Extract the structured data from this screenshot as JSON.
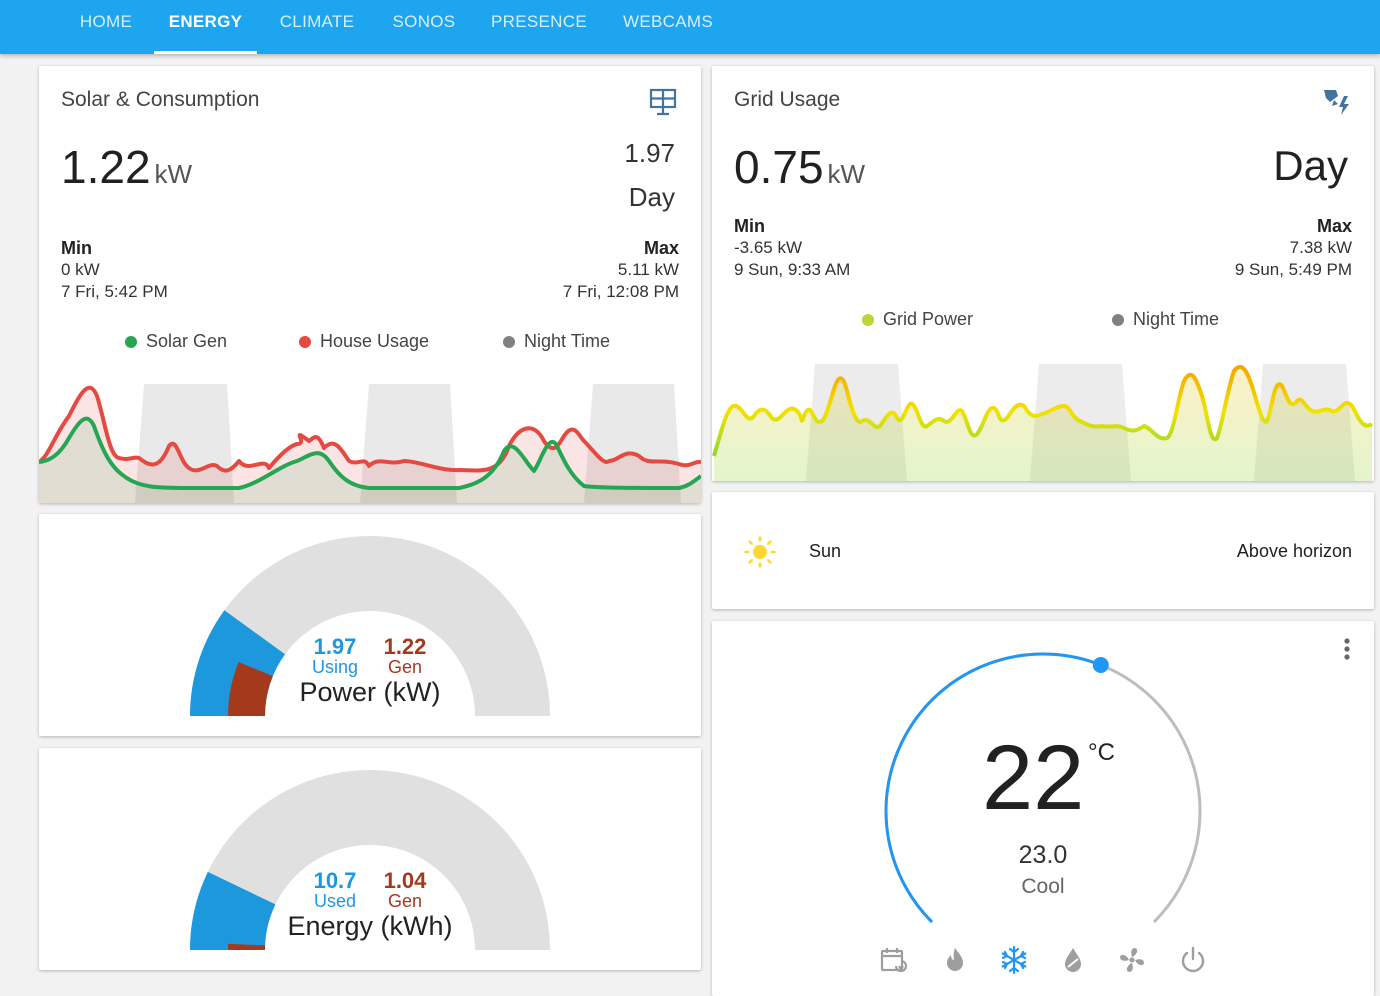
{
  "colors": {
    "accent": "#1ea5ef",
    "solar": "#26a653",
    "house": "#e54a42",
    "night": "#808080",
    "using": "#1e98dc",
    "gen": "#a43a1c",
    "grid": "#b8d837"
  },
  "tabs": [
    {
      "label": "HOME"
    },
    {
      "label": "ENERGY"
    },
    {
      "label": "CLIMATE"
    },
    {
      "label": "SONOS"
    },
    {
      "label": "PRESENCE"
    },
    {
      "label": "WEBCAMS"
    }
  ],
  "active_tab": "ENERGY",
  "solar_card": {
    "title": "Solar & Consumption",
    "icon": "solar-panel-icon",
    "value": "1.22",
    "unit": "kW",
    "secondary_value": "1.97",
    "period": "Day",
    "min_label": "Min",
    "min_value": "0 kW",
    "min_time": "7 Fri, 5:42 PM",
    "max_label": "Max",
    "max_value": "5.11 kW",
    "max_time": "7 Fri, 12:08 PM",
    "legend": [
      {
        "label": "Solar Gen",
        "color": "#26a653"
      },
      {
        "label": "House Usage",
        "color": "#e54a42"
      },
      {
        "label": "Night Time",
        "color": "#808080"
      }
    ]
  },
  "grid_card": {
    "title": "Grid Usage",
    "icon": "transmission-tower-icon",
    "value": "0.75",
    "unit": "kW",
    "period": "Day",
    "min_label": "Min",
    "min_value": "-3.65 kW",
    "min_time": "9 Sun, 9:33 AM",
    "max_label": "Max",
    "max_value": "7.38 kW",
    "max_time": "9 Sun, 5:49 PM",
    "legend": [
      {
        "label": "Grid Power",
        "color": "#b8d837"
      },
      {
        "label": "Night Time",
        "color": "#808080"
      }
    ]
  },
  "power_gauge": {
    "using_value": "1.97",
    "using_label": "Using",
    "gen_value": "1.22",
    "gen_label": "Gen",
    "name": "Power (kW)",
    "using_fraction": 0.2,
    "gen_fraction": 0.124
  },
  "energy_gauge": {
    "used_value": "10.7",
    "used_label": "Used",
    "gen_value": "1.04",
    "gen_label": "Gen",
    "name": "Energy (kWh)",
    "used_fraction": 0.143,
    "gen_fraction": 0.014
  },
  "sun_card": {
    "icon": "sun-icon",
    "name": "Sun",
    "state": "Above horizon"
  },
  "thermostat": {
    "target": "22",
    "unit": "°C",
    "current": "23.0",
    "mode": "Cool",
    "setpoint_fraction": 0.58,
    "menu_icon": "more-vertical-icon",
    "modes": [
      {
        "name": "auto-schedule-icon",
        "active": false
      },
      {
        "name": "heat-flame-icon",
        "active": false
      },
      {
        "name": "cool-snowflake-icon",
        "active": true
      },
      {
        "name": "dry-water-icon",
        "active": false
      },
      {
        "name": "fan-icon",
        "active": false
      },
      {
        "name": "power-off-icon",
        "active": false
      }
    ]
  }
}
